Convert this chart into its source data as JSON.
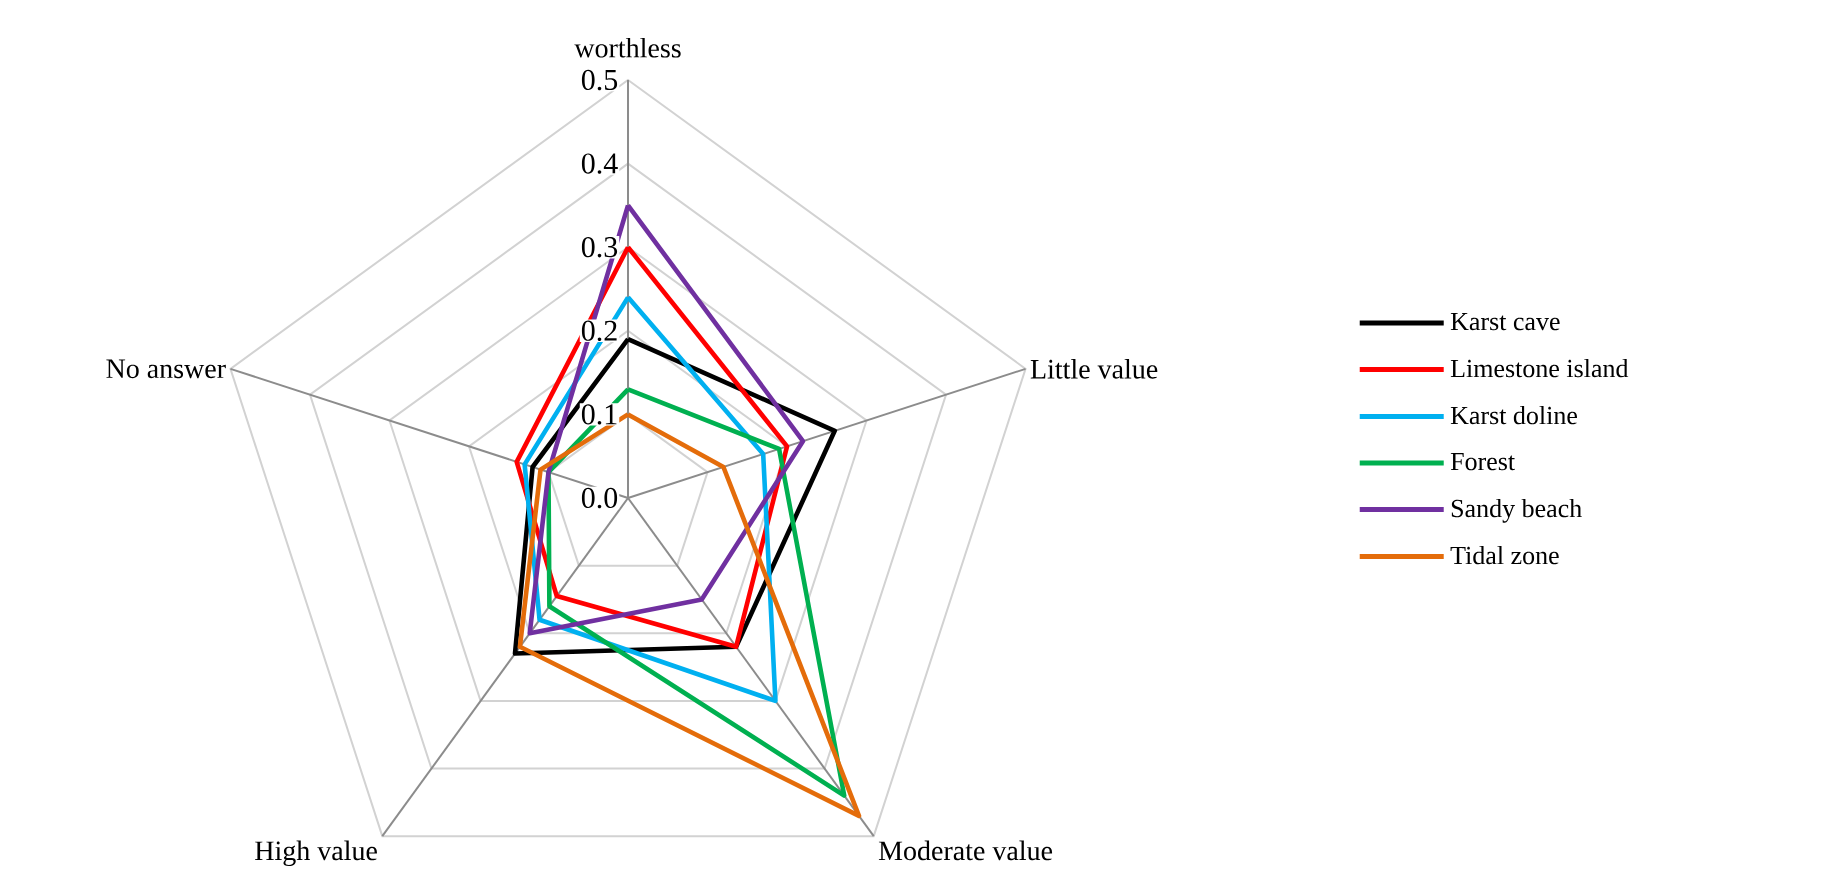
{
  "chart_data": {
    "type": "radar",
    "categories": [
      "worthless",
      "Little value",
      "Moderate value",
      "High value",
      "No answer"
    ],
    "series": [
      {
        "name": "Karst cave",
        "color": "#000000",
        "values": [
          0.19,
          0.26,
          0.22,
          0.23,
          0.12
        ]
      },
      {
        "name": "Limestone island",
        "color": "#ff0000",
        "values": [
          0.3,
          0.2,
          0.22,
          0.145,
          0.14
        ]
      },
      {
        "name": "Karst doline",
        "color": "#00b0f0",
        "values": [
          0.24,
          0.17,
          0.3,
          0.18,
          0.13
        ]
      },
      {
        "name": "Forest",
        "color": "#00b050",
        "values": [
          0.13,
          0.19,
          0.44,
          0.16,
          0.1
        ]
      },
      {
        "name": "Sandy beach",
        "color": "#7030a0",
        "values": [
          0.35,
          0.22,
          0.15,
          0.2,
          0.1
        ]
      },
      {
        "name": "Tidal zone",
        "color": "#e46c0a",
        "values": [
          0.1,
          0.12,
          0.47,
          0.22,
          0.11
        ]
      }
    ],
    "ylim": [
      0,
      0.5
    ],
    "yticks": [
      {
        "value": 0,
        "label": "0.0"
      },
      {
        "value": 0.1,
        "label": "0.1"
      },
      {
        "value": 0.2,
        "label": "0.2"
      },
      {
        "value": 0.3,
        "label": "0.3"
      },
      {
        "value": 0.4,
        "label": "0.4"
      },
      {
        "value": 0.5,
        "label": "0.5"
      }
    ],
    "grid": true,
    "legend": "right",
    "line_style": "solid"
  }
}
